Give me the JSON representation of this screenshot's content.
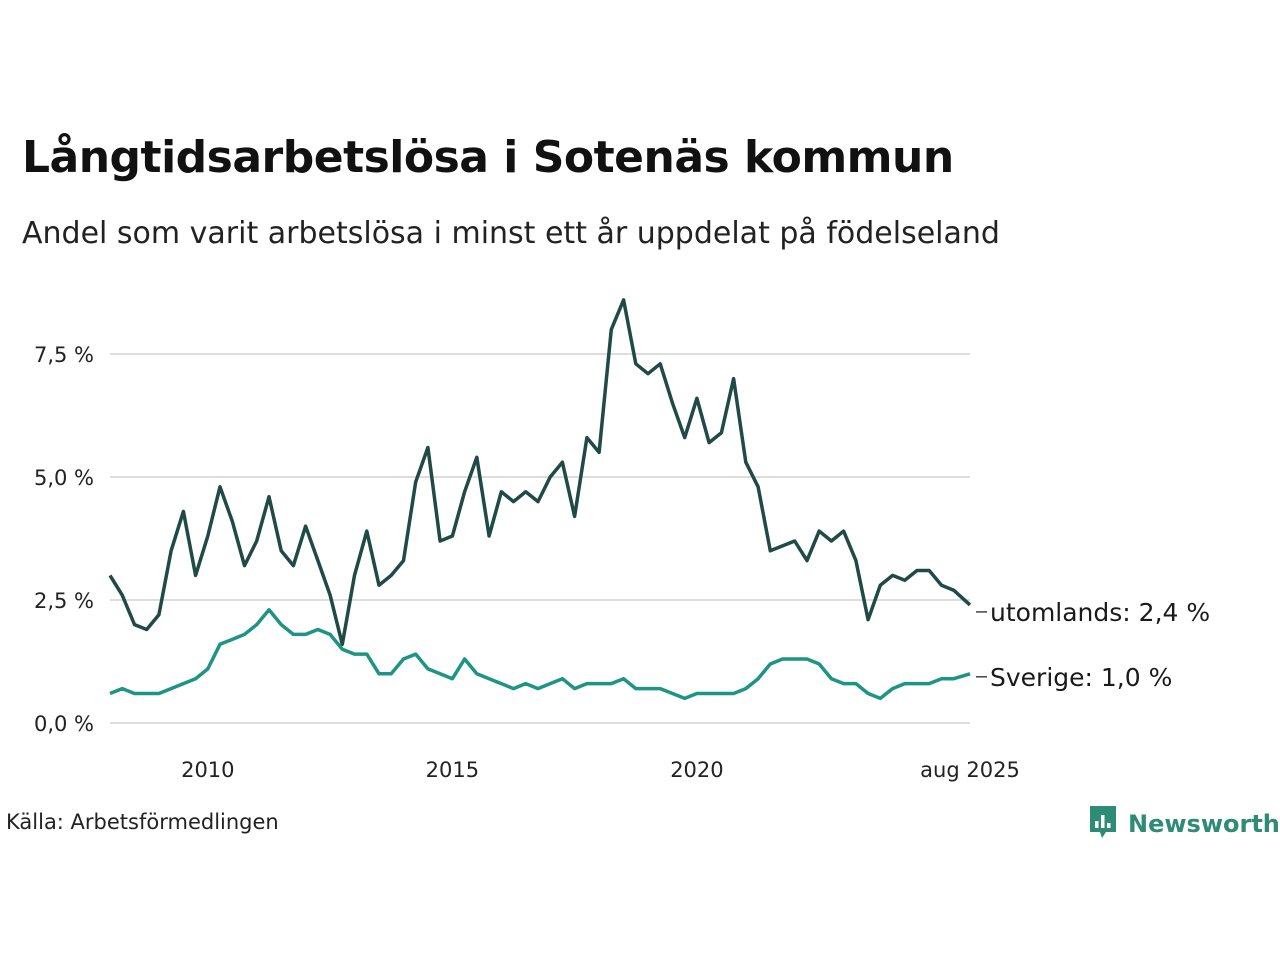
{
  "title": "Långtidsarbetslösa i Sotenäs kommun",
  "subtitle": "Andel som varit arbetslösa i minst ett år uppdelat på födelseland",
  "source": "Källa: Arbetsförmedlingen",
  "brand": "Newsworthy",
  "brand_icon": "bar-chart-speech-icon",
  "colors": {
    "utomlands": "#1f4a45",
    "sverige": "#1e9484",
    "grid": "#dddddd",
    "brand": "#2e8b75"
  },
  "chart_data": {
    "type": "line",
    "title": "Långtidsarbetslösa i Sotenäs kommun",
    "subtitle": "Andel som varit arbetslösa i minst ett år uppdelat på födelseland",
    "y_ticks": [
      "0,0 %",
      "2,5 %",
      "5,0 %",
      "7,5 %"
    ],
    "y_tick_values": [
      0,
      2.5,
      5.0,
      7.5
    ],
    "x_ticks": [
      "2010",
      "2015",
      "2020",
      "aug 2025"
    ],
    "x_tick_values": [
      "2010-01",
      "2015-01",
      "2020-01",
      "2025-08"
    ],
    "ylim": [
      0,
      8.8
    ],
    "xlim": [
      "2008-01",
      "2025-08"
    ],
    "grid": "horizontal",
    "x": [
      "2008-01",
      "2008-04",
      "2008-07",
      "2008-10",
      "2009-01",
      "2009-04",
      "2009-07",
      "2009-10",
      "2010-01",
      "2010-04",
      "2010-07",
      "2010-10",
      "2011-01",
      "2011-04",
      "2011-07",
      "2011-10",
      "2012-01",
      "2012-04",
      "2012-07",
      "2012-10",
      "2013-01",
      "2013-04",
      "2013-07",
      "2013-10",
      "2014-01",
      "2014-04",
      "2014-07",
      "2014-10",
      "2015-01",
      "2015-04",
      "2015-07",
      "2015-10",
      "2016-01",
      "2016-04",
      "2016-07",
      "2016-10",
      "2017-01",
      "2017-04",
      "2017-07",
      "2017-10",
      "2018-01",
      "2018-04",
      "2018-07",
      "2018-10",
      "2019-01",
      "2019-04",
      "2019-07",
      "2019-10",
      "2020-01",
      "2020-04",
      "2020-07",
      "2020-10",
      "2021-01",
      "2021-04",
      "2021-07",
      "2021-10",
      "2022-01",
      "2022-04",
      "2022-07",
      "2022-10",
      "2023-01",
      "2023-04",
      "2023-07",
      "2023-10",
      "2024-01",
      "2024-04",
      "2024-07",
      "2024-10",
      "2025-01",
      "2025-04",
      "2025-08"
    ],
    "series": [
      {
        "name": "utomlands",
        "end_label": "utomlands: 2,4 %",
        "values": [
          3.0,
          2.6,
          2.0,
          1.9,
          2.2,
          3.5,
          4.3,
          3.0,
          3.8,
          4.8,
          4.1,
          3.2,
          3.7,
          4.6,
          3.5,
          3.2,
          4.0,
          3.3,
          2.6,
          1.6,
          3.0,
          3.9,
          2.8,
          3.0,
          3.3,
          4.9,
          5.6,
          3.7,
          3.8,
          4.7,
          5.4,
          3.8,
          4.7,
          4.5,
          4.7,
          4.5,
          5.0,
          5.3,
          4.2,
          5.8,
          5.5,
          8.0,
          8.6,
          7.3,
          7.1,
          7.3,
          6.5,
          5.8,
          6.6,
          5.7,
          5.9,
          7.0,
          5.3,
          4.8,
          3.5,
          3.6,
          3.7,
          3.3,
          3.9,
          3.7,
          3.9,
          3.3,
          2.1,
          2.8,
          3.0,
          2.9,
          3.1,
          3.1,
          2.8,
          2.7,
          2.4
        ]
      },
      {
        "name": "Sverige",
        "end_label": "Sverige: 1,0 %",
        "values": [
          0.6,
          0.7,
          0.6,
          0.6,
          0.6,
          0.7,
          0.8,
          0.9,
          1.1,
          1.6,
          1.7,
          1.8,
          2.0,
          2.3,
          2.0,
          1.8,
          1.8,
          1.9,
          1.8,
          1.5,
          1.4,
          1.4,
          1.0,
          1.0,
          1.3,
          1.4,
          1.1,
          1.0,
          0.9,
          1.3,
          1.0,
          0.9,
          0.8,
          0.7,
          0.8,
          0.7,
          0.8,
          0.9,
          0.7,
          0.8,
          0.8,
          0.8,
          0.9,
          0.7,
          0.7,
          0.7,
          0.6,
          0.5,
          0.6,
          0.6,
          0.6,
          0.6,
          0.7,
          0.9,
          1.2,
          1.3,
          1.3,
          1.3,
          1.2,
          0.9,
          0.8,
          0.8,
          0.6,
          0.5,
          0.7,
          0.8,
          0.8,
          0.8,
          0.9,
          0.9,
          1.0
        ]
      }
    ]
  }
}
